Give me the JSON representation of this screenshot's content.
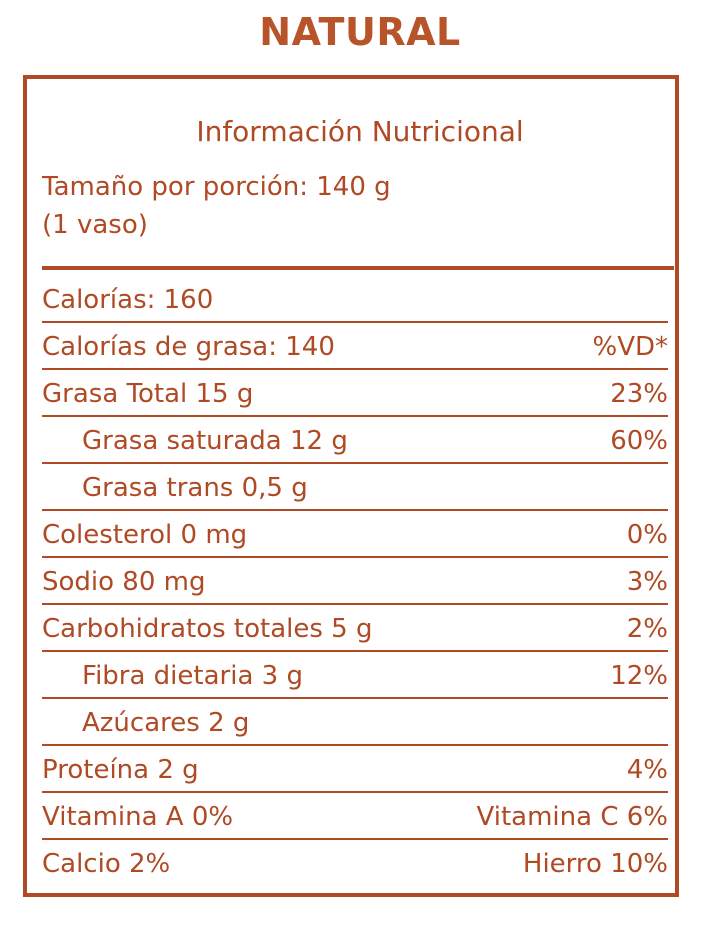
{
  "header": {
    "title": "NATURAL"
  },
  "panel": {
    "title": "Información Nutricional",
    "serving_line1": "Tamaño por porción: 140 g",
    "serving_line2": "(1 vaso)"
  },
  "rows": [
    {
      "label": "Calorías: 160",
      "value": ""
    },
    {
      "label": "Calorías de grasa: 140",
      "value": "%VD*"
    },
    {
      "label": "Grasa Total 15 g",
      "value": "23%"
    },
    {
      "label": "Grasa saturada 12 g",
      "value": "60%"
    },
    {
      "label": "Grasa trans 0,5 g",
      "value": ""
    },
    {
      "label": "Colesterol 0 mg",
      "value": "0%"
    },
    {
      "label": "Sodio 80 mg",
      "value": "3%"
    },
    {
      "label": "Carbohidratos totales 5 g",
      "value": "2%"
    },
    {
      "label": "Fibra dietaria 3 g",
      "value": "12%"
    },
    {
      "label": "Azúcares 2 g",
      "value": ""
    },
    {
      "label": "Proteína 2 g",
      "value": "4%"
    },
    {
      "label": "Vitamina A 0%",
      "value": "Vitamina C 6%"
    },
    {
      "label": "Calcio 2%",
      "value": "Hierro 10%"
    }
  ],
  "colors": {
    "text": "#b04a25",
    "title": "#b8542a",
    "background": "#ffffff"
  }
}
